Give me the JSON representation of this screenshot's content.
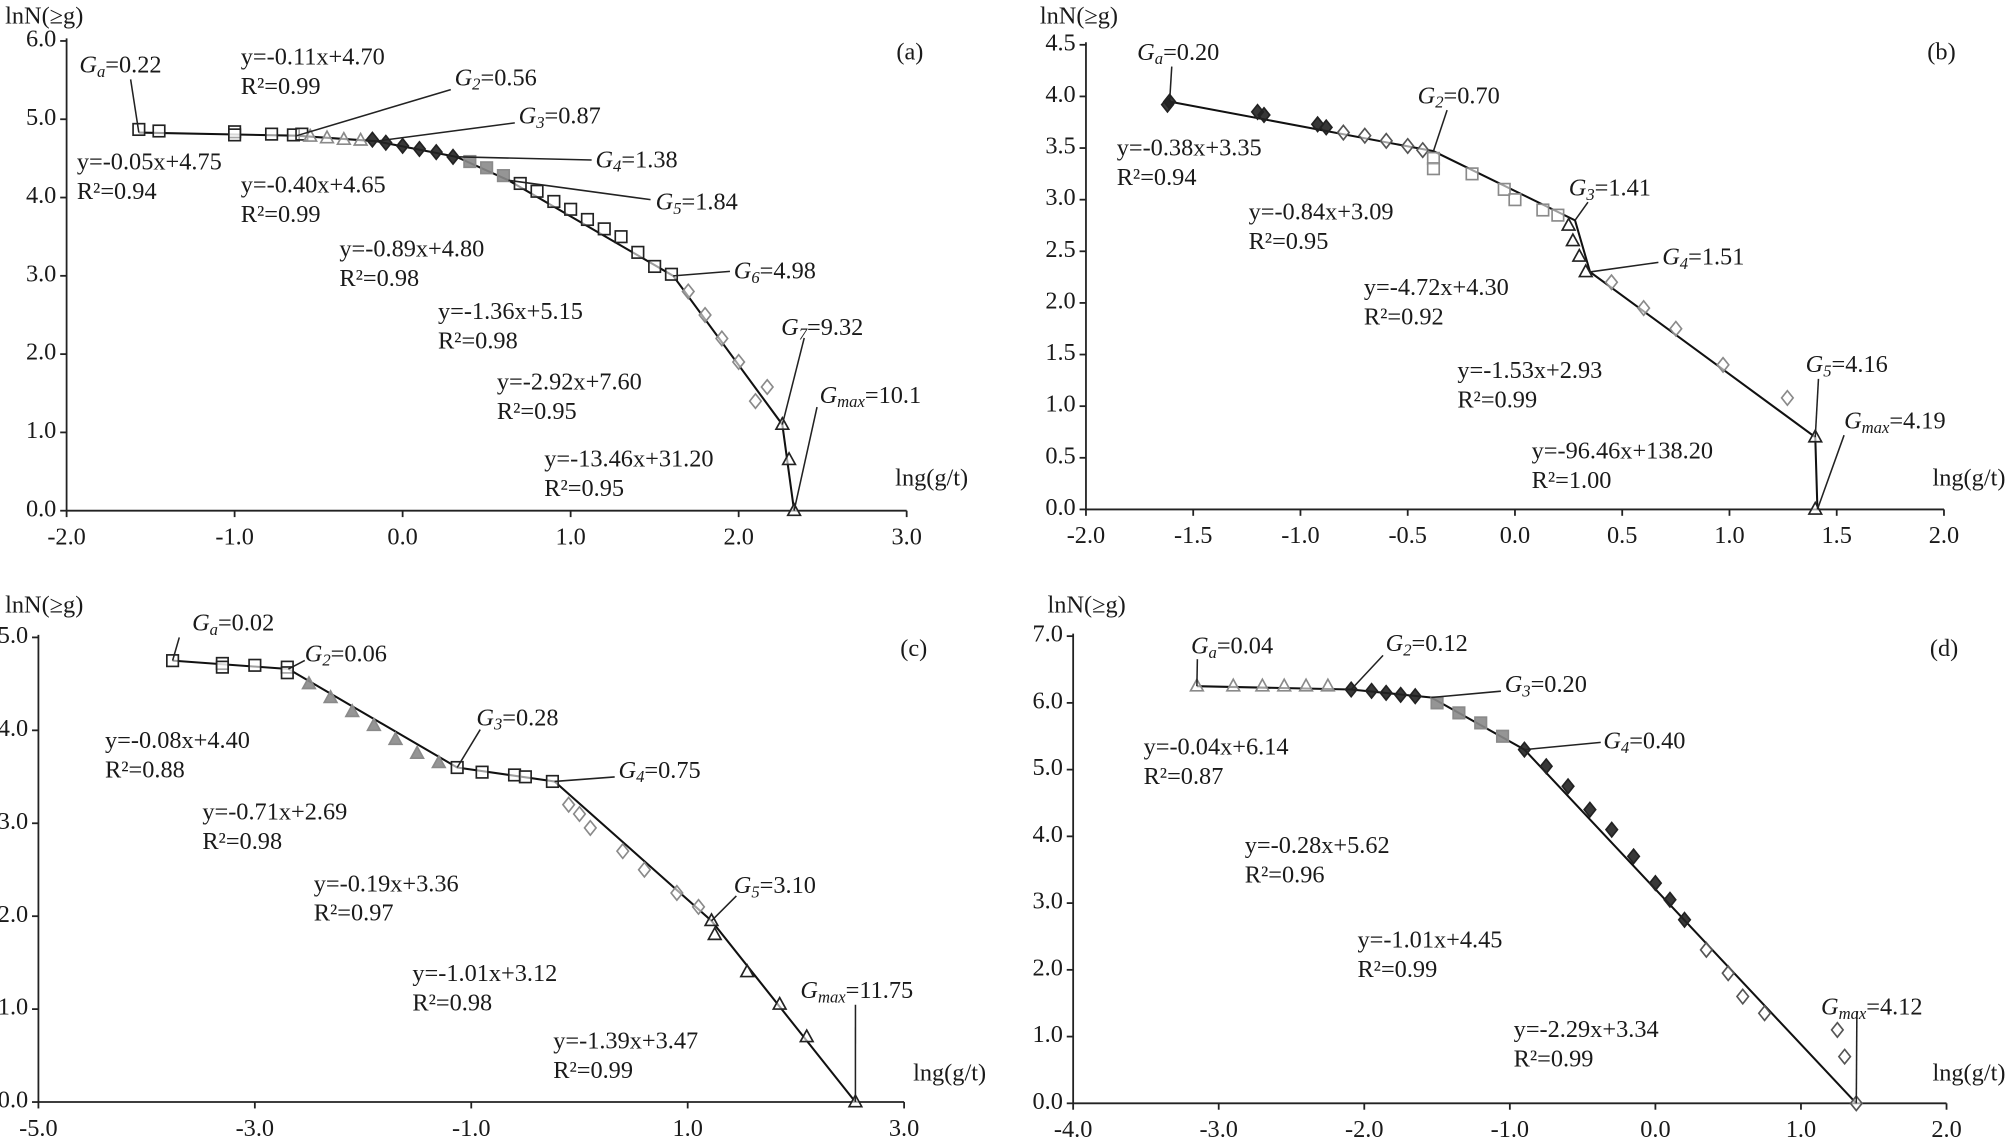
{
  "chart_data": [
    {
      "type": "scatter",
      "panel_label": "(a)",
      "y_label": "lnN(≥g)",
      "x_label": "lng(g/t)",
      "xlim": [
        -2,
        3
      ],
      "xticks": [
        {
          "value": -2,
          "label": "-2.0"
        },
        {
          "value": -1,
          "label": "-1.0"
        },
        {
          "value": 0,
          "label": "0.0"
        },
        {
          "value": 1,
          "label": "1.0"
        },
        {
          "value": 2,
          "label": "2.0"
        },
        {
          "value": 3,
          "label": "3.0"
        }
      ],
      "ylim": [
        0,
        6
      ],
      "yticks": [
        {
          "value": 0,
          "label": "0.0"
        },
        {
          "value": 1,
          "label": "1.0"
        },
        {
          "value": 2,
          "label": "2.0"
        },
        {
          "value": 3,
          "label": "3.0"
        },
        {
          "value": 4,
          "label": "4.0"
        },
        {
          "value": 5,
          "label": "5.0"
        },
        {
          "value": 6,
          "label": "6.0"
        }
      ],
      "series": [
        {
          "marker": "square",
          "color": "#222222",
          "filled": false,
          "x": [
            -1.57,
            -1.45,
            -1.0,
            -1.0,
            -0.78,
            -0.65,
            -0.6
          ],
          "values": [
            4.87,
            4.85,
            4.84,
            4.8,
            4.81,
            4.8,
            4.81
          ]
        },
        {
          "marker": "triangle",
          "color": "#8a8a8a",
          "filled": false,
          "x": [
            -0.55,
            -0.45,
            -0.35,
            -0.25
          ],
          "values": [
            4.78,
            4.76,
            4.74,
            4.73
          ]
        },
        {
          "marker": "diamond",
          "color": "#222222",
          "filled": true,
          "x": [
            -0.18,
            -0.1,
            0,
            0.1,
            0.2,
            0.3
          ],
          "values": [
            4.74,
            4.7,
            4.66,
            4.62,
            4.58,
            4.52
          ]
        },
        {
          "marker": "square",
          "color": "#8a8a8a",
          "filled": true,
          "x": [
            0.4,
            0.5,
            0.6
          ],
          "values": [
            4.46,
            4.38,
            4.28
          ]
        },
        {
          "marker": "square",
          "color": "#222222",
          "filled": false,
          "x": [
            0.7,
            0.8,
            0.9,
            1.0,
            1.1,
            1.2,
            1.3,
            1.4,
            1.5,
            1.6
          ],
          "values": [
            4.18,
            4.08,
            3.95,
            3.85,
            3.72,
            3.6,
            3.5,
            3.3,
            3.12,
            3.02
          ]
        },
        {
          "marker": "diamond",
          "color": "#8a8a8a",
          "filled": false,
          "x": [
            1.7,
            1.8,
            1.9,
            2.0,
            2.1,
            2.17
          ],
          "values": [
            2.8,
            2.5,
            2.2,
            1.9,
            1.4,
            1.58
          ]
        },
        {
          "marker": "triangle",
          "color": "#222222",
          "filled": false,
          "x": [
            2.26,
            2.3,
            2.33
          ],
          "values": [
            1.1,
            0.65,
            0
          ]
        }
      ],
      "fit": {
        "x": [
          -1.57,
          -0.63,
          -0.16,
          0.32,
          0.63,
          1.61,
          2.26,
          2.33
        ],
        "values": [
          4.83,
          4.79,
          4.72,
          4.52,
          4.22,
          3.0,
          1.1,
          0
        ]
      },
      "breakpoints": [
        {
          "symbol": "G",
          "subscript": "a",
          "text": "=0.22"
        },
        {
          "symbol": "G",
          "subscript": "2",
          "text": "=0.56"
        },
        {
          "symbol": "G",
          "subscript": "3",
          "text": "=0.87"
        },
        {
          "symbol": "G",
          "subscript": "4",
          "text": "=1.38"
        },
        {
          "symbol": "G",
          "subscript": "5",
          "text": "=1.84"
        },
        {
          "symbol": "G",
          "subscript": "6",
          "text": "=4.98"
        },
        {
          "symbol": "G",
          "subscript": "7",
          "text": "=9.32"
        },
        {
          "symbol": "G",
          "subscript": "max",
          "text": "=10.1"
        }
      ],
      "equations": [
        {
          "text": "y=-0.11x+4.70",
          "r2": "R²=0.99"
        },
        {
          "text": "y=-0.05x+4.75",
          "r2": "R²=0.94"
        },
        {
          "text": "y=-0.40x+4.65",
          "r2": "R²=0.99"
        },
        {
          "text": "y=-0.89x+4.80",
          "r2": "R²=0.98"
        },
        {
          "text": "y=-1.36x+5.15",
          "r2": "R²=0.98"
        },
        {
          "text": "y=-2.92x+7.60",
          "r2": "R²=0.95"
        },
        {
          "text": "y=-13.46x+31.20",
          "r2": "R²=0.95"
        }
      ]
    },
    {
      "type": "scatter",
      "panel_label": "(b)",
      "y_label": "lnN(≥g)",
      "x_label": "lng(g/t)",
      "xlim": [
        -2,
        2
      ],
      "xticks": [
        {
          "value": -2,
          "label": "-2.0"
        },
        -1.5,
        {
          "value": -1,
          "label": "-1.0"
        },
        -0.5,
        {
          "value": 0,
          "label": "0.0"
        },
        0.5,
        {
          "value": 1,
          "label": "1.0"
        },
        1.5,
        {
          "value": 2,
          "label": "2.0"
        }
      ],
      "ylim": [
        0,
        4.5
      ],
      "yticks": [
        {
          "value": 0,
          "label": "0.0"
        },
        0.5,
        {
          "value": 1,
          "label": "1.0"
        },
        1.5,
        {
          "value": 2,
          "label": "2.0"
        },
        2.5,
        {
          "value": 3,
          "label": "3.0"
        },
        3.5,
        {
          "value": 4,
          "label": "4.0"
        },
        4.5
      ],
      "series": [
        {
          "marker": "diamond",
          "color": "#222222",
          "filled": true,
          "x": [
            -1.62,
            -1.61,
            -1.2,
            -1.17,
            -0.92,
            -0.88
          ],
          "values": [
            3.92,
            3.95,
            3.85,
            3.82,
            3.73,
            3.7
          ]
        },
        {
          "marker": "diamond",
          "color": "#555555",
          "filled": false,
          "x": [
            -0.8,
            -0.7,
            -0.6,
            -0.5,
            -0.43
          ],
          "values": [
            3.65,
            3.62,
            3.57,
            3.52,
            3.48
          ]
        },
        {
          "marker": "square",
          "color": "#8a8a8a",
          "filled": false,
          "x": [
            -0.38,
            -0.38,
            -0.2,
            -0.05,
            0.0,
            0.13,
            0.2
          ],
          "values": [
            3.4,
            3.3,
            3.25,
            3.1,
            3.0,
            2.9,
            2.85
          ]
        },
        {
          "marker": "triangle",
          "color": "#222222",
          "filled": false,
          "x": [
            0.25,
            0.27,
            0.3,
            0.33
          ],
          "values": [
            2.75,
            2.6,
            2.45,
            2.3
          ]
        },
        {
          "marker": "diamond",
          "color": "#8a8a8a",
          "filled": false,
          "x": [
            0.45,
            0.6,
            0.75,
            0.97,
            1.27
          ],
          "values": [
            2.2,
            1.95,
            1.75,
            1.4,
            1.08
          ]
        },
        {
          "marker": "triangle",
          "color": "#222222",
          "filled": false,
          "x": [
            1.4,
            1.4
          ],
          "values": [
            0.7,
            0
          ]
        }
      ],
      "fit": {
        "x": [
          -1.61,
          -0.38,
          0.28,
          0.35,
          1.4,
          1.41
        ],
        "values": [
          3.95,
          3.47,
          2.8,
          2.3,
          0.7,
          0
        ]
      },
      "breakpoints": [
        {
          "symbol": "G",
          "subscript": "a",
          "text": "=0.20"
        },
        {
          "symbol": "G",
          "subscript": "2",
          "text": "=0.70"
        },
        {
          "symbol": "G",
          "subscript": "3",
          "text": "=1.41"
        },
        {
          "symbol": "G",
          "subscript": "4",
          "text": "=1.51"
        },
        {
          "symbol": "G",
          "subscript": "5",
          "text": "=4.16"
        },
        {
          "symbol": "G",
          "subscript": "max",
          "text": "=4.19"
        }
      ],
      "equations": [
        {
          "text": "y=-0.38x+3.35",
          "r2": "R²=0.94"
        },
        {
          "text": "y=-0.84x+3.09",
          "r2": "R²=0.95"
        },
        {
          "text": "y=-4.72x+4.30",
          "r2": "R²=0.92"
        },
        {
          "text": "y=-1.53x+2.93",
          "r2": "R²=0.99"
        },
        {
          "text": "y=-96.46x+138.20",
          "r2": "R²=1.00"
        }
      ]
    },
    {
      "type": "scatter",
      "panel_label": "(c)",
      "y_label": "lnN(≥g)",
      "x_label": "lng(g/t)",
      "xlim": [
        -5,
        3
      ],
      "xticks": [
        {
          "value": -5,
          "label": "-5.0"
        },
        {
          "value": -3,
          "label": "-3.0"
        },
        {
          "value": -1,
          "label": "-1.0"
        },
        {
          "value": 1,
          "label": "1.0"
        },
        {
          "value": 3,
          "label": "3.0"
        }
      ],
      "ylim": [
        0,
        5
      ],
      "yticks": [
        {
          "value": 0,
          "label": "0.0"
        },
        {
          "value": 1,
          "label": "1.0"
        },
        {
          "value": 2,
          "label": "2.0"
        },
        {
          "value": 3,
          "label": "3.0"
        },
        {
          "value": 4,
          "label": "4.0"
        },
        {
          "value": 5,
          "label": "5.0"
        }
      ],
      "series": [
        {
          "marker": "square",
          "color": "#222222",
          "filled": false,
          "x": [
            -3.76,
            -3.3,
            -3.3,
            -3.0,
            -2.7,
            -2.7
          ],
          "values": [
            4.75,
            4.72,
            4.68,
            4.7,
            4.68,
            4.62
          ]
        },
        {
          "marker": "triangle",
          "color": "#8a8a8a",
          "filled": true,
          "x": [
            -2.5,
            -2.3,
            -2.1,
            -1.9,
            -1.7,
            -1.5,
            -1.3
          ],
          "values": [
            4.5,
            4.35,
            4.2,
            4.05,
            3.9,
            3.75,
            3.65
          ]
        },
        {
          "marker": "square",
          "color": "#222222",
          "filled": false,
          "x": [
            -1.13,
            -0.9,
            -0.6,
            -0.5,
            -0.25
          ],
          "values": [
            3.6,
            3.55,
            3.52,
            3.5,
            3.45
          ]
        },
        {
          "marker": "diamond",
          "color": "#8a8a8a",
          "filled": false,
          "x": [
            -0.1,
            0.0,
            0.1,
            0.4,
            0.6,
            0.9,
            1.1
          ],
          "values": [
            3.2,
            3.1,
            2.95,
            2.7,
            2.5,
            2.25,
            2.1
          ]
        },
        {
          "marker": "triangle",
          "color": "#222222",
          "filled": false,
          "x": [
            1.22,
            1.25,
            1.55,
            1.85,
            2.1,
            2.55
          ],
          "values": [
            1.95,
            1.8,
            1.4,
            1.05,
            0.7,
            0
          ]
        }
      ],
      "fit": {
        "x": [
          -3.76,
          -2.69,
          -1.13,
          -0.23,
          1.22,
          2.55
        ],
        "values": [
          4.75,
          4.66,
          3.6,
          3.45,
          1.95,
          0
        ]
      },
      "breakpoints": [
        {
          "symbol": "G",
          "subscript": "a",
          "text": "=0.02"
        },
        {
          "symbol": "G",
          "subscript": "2",
          "text": "=0.06"
        },
        {
          "symbol": "G",
          "subscript": "3",
          "text": "=0.28"
        },
        {
          "symbol": "G",
          "subscript": "4",
          "text": "=0.75"
        },
        {
          "symbol": "G",
          "subscript": "5",
          "text": "=3.10"
        },
        {
          "symbol": "G",
          "subscript": "max",
          "text": "=11.75"
        }
      ],
      "equations": [
        {
          "text": "y=-0.08x+4.40",
          "r2": "R²=0.88"
        },
        {
          "text": "y=-0.71x+2.69",
          "r2": "R²=0.98"
        },
        {
          "text": "y=-0.19x+3.36",
          "r2": "R²=0.97"
        },
        {
          "text": "y=-1.01x+3.12",
          "r2": "R²=0.98"
        },
        {
          "text": "y=-1.39x+3.47",
          "r2": "R²=0.99"
        }
      ]
    },
    {
      "type": "scatter",
      "panel_label": "(d)",
      "y_label": "lnN(≥g)",
      "x_label": "lng(g/t)",
      "xlim": [
        -4,
        2
      ],
      "xticks": [
        {
          "value": -4,
          "label": "-4.0"
        },
        {
          "value": -3,
          "label": "-3.0"
        },
        {
          "value": -2,
          "label": "-2.0"
        },
        {
          "value": -1,
          "label": "-1.0"
        },
        {
          "value": 0,
          "label": "0.0"
        },
        {
          "value": 1,
          "label": "1.0"
        },
        {
          "value": 2,
          "label": "2.0"
        }
      ],
      "ylim": [
        0,
        7
      ],
      "yticks": [
        {
          "value": 0,
          "label": "0.0"
        },
        {
          "value": 1,
          "label": "1.0"
        },
        {
          "value": 2,
          "label": "2.0"
        },
        {
          "value": 3,
          "label": "3.0"
        },
        {
          "value": 4,
          "label": "4.0"
        },
        {
          "value": 5,
          "label": "5.0"
        },
        {
          "value": 6,
          "label": "6.0"
        },
        {
          "value": 7,
          "label": "7.0"
        }
      ],
      "series": [
        {
          "marker": "triangle",
          "color": "#8a8a8a",
          "filled": false,
          "x": [
            -3.15,
            -2.9,
            -2.7,
            -2.55,
            -2.4,
            -2.25
          ],
          "values": [
            6.25,
            6.25,
            6.25,
            6.25,
            6.25,
            6.25
          ]
        },
        {
          "marker": "diamond",
          "color": "#222222",
          "filled": true,
          "x": [
            -2.09,
            -1.95,
            -1.85,
            -1.75,
            -1.65
          ],
          "values": [
            6.2,
            6.18,
            6.15,
            6.12,
            6.1
          ]
        },
        {
          "marker": "square",
          "color": "#8a8a8a",
          "filled": true,
          "x": [
            -1.5,
            -1.35,
            -1.2,
            -1.05
          ],
          "values": [
            6.0,
            5.85,
            5.7,
            5.5
          ]
        },
        {
          "marker": "diamond",
          "color": "#222222",
          "filled": true,
          "x": [
            -0.9,
            -0.75,
            -0.6,
            -0.45,
            -0.3,
            -0.15,
            0.0,
            0.1,
            0.2
          ],
          "values": [
            5.3,
            5.05,
            4.75,
            4.4,
            4.1,
            3.7,
            3.3,
            3.05,
            2.75
          ]
        },
        {
          "marker": "diamond",
          "color": "#555555",
          "filled": false,
          "x": [
            0.35,
            0.5,
            0.6,
            0.75,
            1.25,
            1.3,
            1.38
          ],
          "values": [
            2.3,
            1.95,
            1.6,
            1.35,
            1.1,
            0.7,
            0
          ]
        }
      ],
      "fit": {
        "x": [
          -3.15,
          -2.09,
          -1.54,
          -0.9,
          1.38
        ],
        "values": [
          6.25,
          6.2,
          6.08,
          5.3,
          0
        ]
      },
      "breakpoints": [
        {
          "symbol": "G",
          "subscript": "a",
          "text": "=0.04"
        },
        {
          "symbol": "G",
          "subscript": "2",
          "text": "=0.12"
        },
        {
          "symbol": "G",
          "subscript": "3",
          "text": "=0.20"
        },
        {
          "symbol": "G",
          "subscript": "4",
          "text": "=0.40"
        },
        {
          "symbol": "G",
          "subscript": "max",
          "text": "=4.12"
        }
      ],
      "equations": [
        {
          "text": "y=-0.04x+6.14",
          "r2": "R²=0.87"
        },
        {
          "text": "y=-0.28x+5.62",
          "r2": "R²=0.96"
        },
        {
          "text": "y=-1.01x+4.45",
          "r2": "R²=0.99"
        },
        {
          "text": "y=-2.29x+3.34",
          "r2": "R²=0.99"
        }
      ]
    }
  ]
}
